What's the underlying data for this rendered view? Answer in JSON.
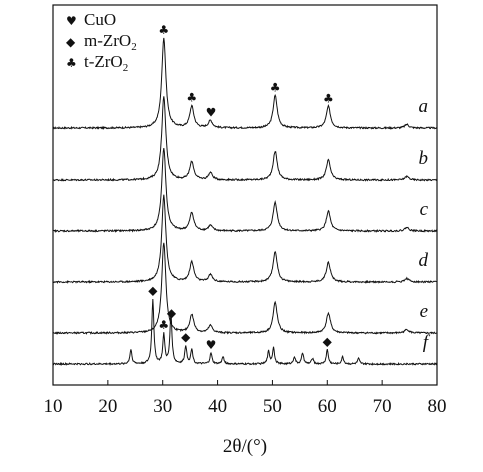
{
  "chart_data": {
    "type": "line",
    "xlabel": "2θ/(°)",
    "ylabel": "",
    "xlim": [
      10,
      80
    ],
    "x_ticks": [
      10,
      20,
      30,
      40,
      50,
      60,
      70,
      80
    ],
    "y_ticks_shown": false,
    "grid": false,
    "legend_position": "top-left",
    "legend": [
      {
        "symbol": "♥",
        "label_main": "CuO",
        "label_sub": "",
        "phase": "CuO"
      },
      {
        "symbol": "◆",
        "label_main": "m-ZrO",
        "label_sub": "2",
        "phase": "m-ZrO2"
      },
      {
        "symbol": "♣",
        "label_main": "t-ZrO",
        "label_sub": "2",
        "phase": "t-ZrO2"
      }
    ],
    "series": [
      {
        "name": "a",
        "peaks": [
          {
            "x": 30.2,
            "h": 50
          },
          {
            "x": 35.3,
            "h": 12
          },
          {
            "x": 38.7,
            "h": 4
          },
          {
            "x": 50.5,
            "h": 18
          },
          {
            "x": 60.2,
            "h": 12
          },
          {
            "x": 74.5,
            "h": 2
          }
        ],
        "markers": [
          {
            "x": 30.2,
            "symbol": "♣"
          },
          {
            "x": 35.3,
            "symbol": "♣"
          },
          {
            "x": 38.8,
            "symbol": "♥"
          },
          {
            "x": 50.5,
            "symbol": "♣"
          },
          {
            "x": 60.2,
            "symbol": "♣"
          }
        ]
      },
      {
        "name": "b",
        "peaks": [
          {
            "x": 30.2,
            "h": 46
          },
          {
            "x": 35.3,
            "h": 10
          },
          {
            "x": 38.7,
            "h": 4
          },
          {
            "x": 50.5,
            "h": 16
          },
          {
            "x": 60.2,
            "h": 11
          },
          {
            "x": 74.5,
            "h": 2
          }
        ],
        "markers": []
      },
      {
        "name": "c",
        "peaks": [
          {
            "x": 30.2,
            "h": 46
          },
          {
            "x": 35.3,
            "h": 10
          },
          {
            "x": 38.7,
            "h": 3
          },
          {
            "x": 50.5,
            "h": 16
          },
          {
            "x": 60.2,
            "h": 11
          },
          {
            "x": 74.5,
            "h": 2
          }
        ],
        "markers": []
      },
      {
        "name": "d",
        "peaks": [
          {
            "x": 30.2,
            "h": 48
          },
          {
            "x": 35.3,
            "h": 11
          },
          {
            "x": 38.7,
            "h": 4
          },
          {
            "x": 50.5,
            "h": 17
          },
          {
            "x": 60.2,
            "h": 11
          },
          {
            "x": 74.5,
            "h": 2
          }
        ],
        "markers": []
      },
      {
        "name": "e",
        "peaks": [
          {
            "x": 30.2,
            "h": 50
          },
          {
            "x": 35.3,
            "h": 10
          },
          {
            "x": 38.7,
            "h": 4
          },
          {
            "x": 50.5,
            "h": 17
          },
          {
            "x": 60.2,
            "h": 11
          },
          {
            "x": 74.5,
            "h": 2
          }
        ],
        "markers": []
      },
      {
        "name": "f",
        "peaks": [
          {
            "x": 24.2,
            "h": 8
          },
          {
            "x": 28.2,
            "h": 36
          },
          {
            "x": 30.2,
            "h": 16
          },
          {
            "x": 31.5,
            "h": 28
          },
          {
            "x": 34.2,
            "h": 10
          },
          {
            "x": 35.3,
            "h": 8
          },
          {
            "x": 38.8,
            "h": 6
          },
          {
            "x": 41.0,
            "h": 4
          },
          {
            "x": 49.3,
            "h": 7
          },
          {
            "x": 50.2,
            "h": 9
          },
          {
            "x": 54.0,
            "h": 4
          },
          {
            "x": 55.5,
            "h": 6
          },
          {
            "x": 57.3,
            "h": 3
          },
          {
            "x": 60.0,
            "h": 8
          },
          {
            "x": 62.8,
            "h": 4
          },
          {
            "x": 65.7,
            "h": 3
          }
        ],
        "markers": [
          {
            "x": 28.2,
            "symbol": "◆"
          },
          {
            "x": 30.2,
            "symbol": "♣"
          },
          {
            "x": 31.6,
            "symbol": "◆"
          },
          {
            "x": 34.2,
            "symbol": "◆"
          },
          {
            "x": 38.8,
            "symbol": "♥"
          },
          {
            "x": 60.0,
            "symbol": "◆"
          }
        ]
      }
    ]
  }
}
